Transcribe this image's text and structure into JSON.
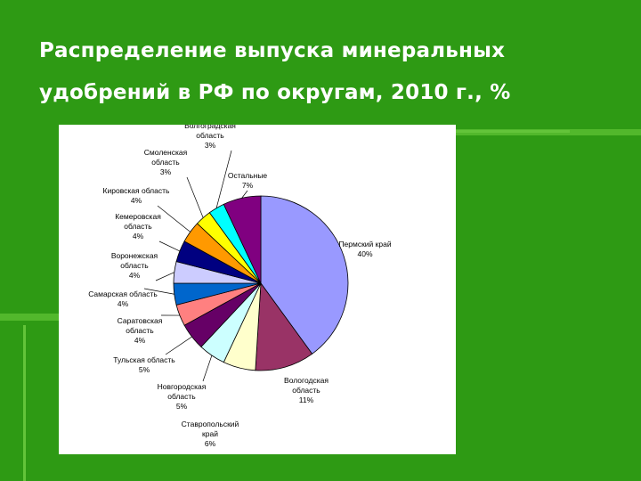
{
  "slide": {
    "title": "Распределение выпуска минеральных удобрений в РФ по округам, 2010 г., %"
  },
  "chart_data": {
    "type": "pie",
    "categories": [
      "Пермский край",
      "Вологодская область",
      "Ставропольский край",
      "Новгородская область",
      "Тульская область",
      "Саратовская область",
      "Самарская область",
      "Воронежская область",
      "Кемеровская область",
      "Кировская область",
      "Смоленская область",
      "Волгоградская область",
      "Остальные"
    ],
    "values": [
      40,
      11,
      6,
      5,
      5,
      4,
      4,
      4,
      4,
      4,
      3,
      3,
      7
    ],
    "labels": [
      [
        "Пермский край",
        "40%"
      ],
      [
        "Вологодская",
        "область",
        "11%"
      ],
      [
        "Ставропольский",
        "край",
        "6%"
      ],
      [
        "Новгородская",
        "область",
        "5%"
      ],
      [
        "Тульская область",
        "5%"
      ],
      [
        "Саратовская",
        "область",
        "4%"
      ],
      [
        "Самарская область",
        "4%"
      ],
      [
        "Воронежская",
        "область",
        "4%"
      ],
      [
        "Кемеровская",
        "область",
        "4%"
      ],
      [
        "Кировская область",
        "4%"
      ],
      [
        "Смоленская",
        "область",
        "3%"
      ],
      [
        "Волгоградская",
        "область",
        "3%"
      ],
      [
        "Остальные",
        "7%"
      ]
    ],
    "colors": [
      "#9999ff",
      "#993366",
      "#ffffcc",
      "#ccffff",
      "#660066",
      "#ff8080",
      "#0066cc",
      "#ccccff",
      "#000080",
      "#ff9900",
      "#ffff00",
      "#00ffff",
      "#800080"
    ],
    "start_angle_deg": 0,
    "direction": "clockwise",
    "legend": "none"
  }
}
